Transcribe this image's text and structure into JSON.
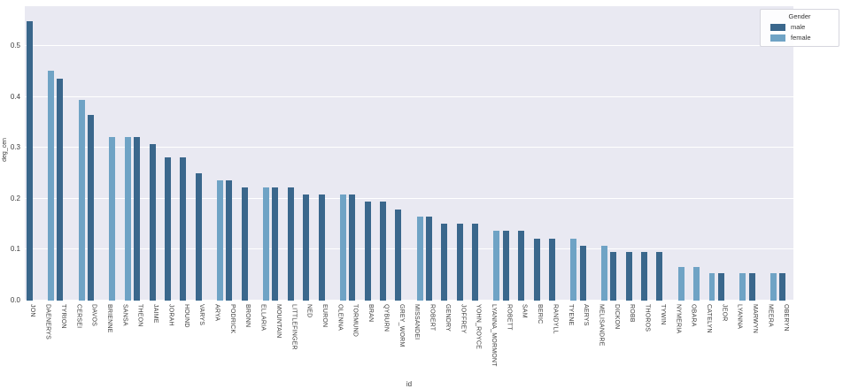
{
  "figure": {
    "plot_bg": "#e9e9f2",
    "grid_color": "#ffffff",
    "text_color": "#3a3a3a"
  },
  "axes": {
    "ylabel": "deg_cen",
    "xlabel": "id",
    "ytick_labels": [
      "0.0",
      "0.1",
      "0.2",
      "0.3",
      "0.4",
      "0.5"
    ]
  },
  "legend": {
    "title": "Gender",
    "items": [
      {
        "label": "male",
        "color": "#3a678c"
      },
      {
        "label": "female",
        "color": "#6fa3c5"
      }
    ]
  },
  "chart_data": {
    "type": "bar",
    "title": "",
    "xlabel": "id",
    "ylabel": "deg_cen",
    "ylim": [
      0,
      0.578
    ],
    "yticks": [
      0,
      0.1,
      0.2,
      0.3,
      0.4,
      0.5
    ],
    "grid": true,
    "legend_position": "upper right",
    "hue": "Gender",
    "hue_colors": {
      "male": "#3a678c",
      "female": "#6fa3c5"
    },
    "bars": [
      {
        "id": "JON",
        "gender": "male",
        "value": 0.549
      },
      {
        "id": "DAENERYS",
        "gender": "female",
        "value": 0.451
      },
      {
        "id": "TYRION",
        "gender": "male",
        "value": 0.435
      },
      {
        "id": "CERSEI",
        "gender": "female",
        "value": 0.394
      },
      {
        "id": "DAVOS",
        "gender": "male",
        "value": 0.365
      },
      {
        "id": "BRIENNE",
        "gender": "female",
        "value": 0.322
      },
      {
        "id": "SANSA",
        "gender": "female",
        "value": 0.322
      },
      {
        "id": "THEON",
        "gender": "male",
        "value": 0.322
      },
      {
        "id": "JAIME",
        "gender": "male",
        "value": 0.308
      },
      {
        "id": "JORAH",
        "gender": "male",
        "value": 0.281
      },
      {
        "id": "HOUND",
        "gender": "male",
        "value": 0.281
      },
      {
        "id": "VARYS",
        "gender": "male",
        "value": 0.25
      },
      {
        "id": "ARYA",
        "gender": "female",
        "value": 0.236
      },
      {
        "id": "PODRICK",
        "gender": "male",
        "value": 0.236
      },
      {
        "id": "BRONN",
        "gender": "male",
        "value": 0.223
      },
      {
        "id": "ELLARIA",
        "gender": "female",
        "value": 0.223
      },
      {
        "id": "MOUNTAIN",
        "gender": "male",
        "value": 0.223
      },
      {
        "id": "LITTLEFINGER",
        "gender": "male",
        "value": 0.223
      },
      {
        "id": "NED",
        "gender": "male",
        "value": 0.209
      },
      {
        "id": "EURON",
        "gender": "male",
        "value": 0.209
      },
      {
        "id": "OLENNA",
        "gender": "female",
        "value": 0.209
      },
      {
        "id": "TORMUND",
        "gender": "male",
        "value": 0.209
      },
      {
        "id": "BRAN",
        "gender": "male",
        "value": 0.194
      },
      {
        "id": "QYBURN",
        "gender": "male",
        "value": 0.194
      },
      {
        "id": "GREY_WORM",
        "gender": "male",
        "value": 0.178
      },
      {
        "id": "MISSANDEI",
        "gender": "female",
        "value": 0.165
      },
      {
        "id": "ROBERT",
        "gender": "male",
        "value": 0.165
      },
      {
        "id": "GENDRY",
        "gender": "male",
        "value": 0.151
      },
      {
        "id": "JOFFREY",
        "gender": "male",
        "value": 0.151
      },
      {
        "id": "YOHN_ROYCE",
        "gender": "male",
        "value": 0.151
      },
      {
        "id": "LYANNA_MORMONT",
        "gender": "female",
        "value": 0.137
      },
      {
        "id": "ROBETT",
        "gender": "male",
        "value": 0.137
      },
      {
        "id": "SAM",
        "gender": "male",
        "value": 0.137
      },
      {
        "id": "BERIC",
        "gender": "male",
        "value": 0.122
      },
      {
        "id": "RANDYLL",
        "gender": "male",
        "value": 0.122
      },
      {
        "id": "TYENE",
        "gender": "female",
        "value": 0.122
      },
      {
        "id": "AERYS",
        "gender": "male",
        "value": 0.108
      },
      {
        "id": "MELISANDRE",
        "gender": "female",
        "value": 0.108
      },
      {
        "id": "DICKON",
        "gender": "male",
        "value": 0.095
      },
      {
        "id": "ROBB",
        "gender": "male",
        "value": 0.095
      },
      {
        "id": "THOROS",
        "gender": "male",
        "value": 0.095
      },
      {
        "id": "TYWIN",
        "gender": "male",
        "value": 0.095
      },
      {
        "id": "NYMERIA",
        "gender": "female",
        "value": 0.066
      },
      {
        "id": "OBARA",
        "gender": "female",
        "value": 0.066
      },
      {
        "id": "CATELYN",
        "gender": "female",
        "value": 0.053
      },
      {
        "id": "JEOR",
        "gender": "male",
        "value": 0.053
      },
      {
        "id": "LYANNA",
        "gender": "female",
        "value": 0.053
      },
      {
        "id": "MARWYN",
        "gender": "male",
        "value": 0.053
      },
      {
        "id": "MEERA",
        "gender": "female",
        "value": 0.053
      },
      {
        "id": "OBERYN",
        "gender": "male",
        "value": 0.053
      }
    ]
  }
}
